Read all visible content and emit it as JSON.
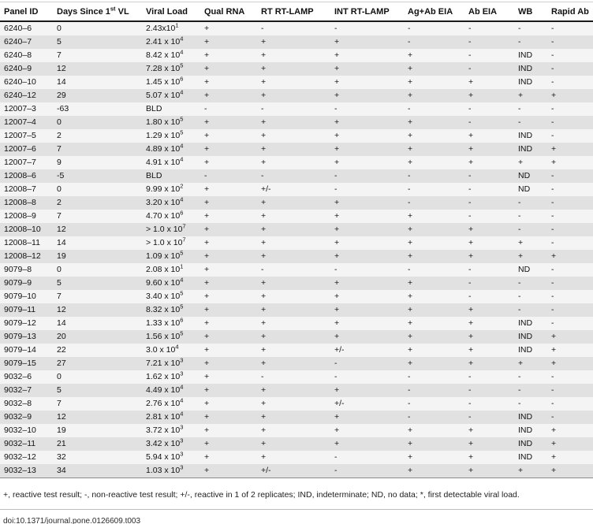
{
  "table": {
    "columns": [
      "Panel ID",
      "Days Since 1^{st} VL",
      "Viral Load",
      "Qual RNA",
      "RT RT-LAMP",
      "INT RT-LAMP",
      "Ag+Ab EIA",
      "Ab EIA",
      "WB",
      "Rapid Ab"
    ],
    "rows": [
      [
        "6240–6",
        "0",
        "2.43x10^{1}",
        "+",
        "-",
        "-",
        "-",
        "-",
        "-",
        "-"
      ],
      [
        "6240–7",
        "5",
        "2.41 x 10^{4}",
        "+",
        "+",
        "+",
        "-",
        "-",
        "-",
        "-"
      ],
      [
        "6240–8",
        "7",
        "8.42 x 10^{4}",
        "+",
        "+",
        "+",
        "+",
        "-",
        "IND",
        "-"
      ],
      [
        "6240–9",
        "12",
        "7.28 x 10^{5}",
        "+",
        "+",
        "+",
        "+",
        "-",
        "IND",
        "-"
      ],
      [
        "6240–10",
        "14",
        "1.45 x 10^{6}",
        "+",
        "+",
        "+",
        "+",
        "+",
        "IND",
        "-"
      ],
      [
        "6240–12",
        "29",
        "5.07 x 10^{4}",
        "+",
        "+",
        "+",
        "+",
        "+",
        "+",
        "+"
      ],
      [
        "12007–3",
        "-63",
        "BLD",
        "-",
        "-",
        "-",
        "-",
        "-",
        "-",
        "-"
      ],
      [
        "12007–4",
        "0",
        "1.80 x 10^{5}",
        "+",
        "+",
        "+",
        "+",
        "-",
        "-",
        "-"
      ],
      [
        "12007–5",
        "2",
        "1.29 x 10^{5}",
        "+",
        "+",
        "+",
        "+",
        "+",
        "IND",
        "-"
      ],
      [
        "12007–6",
        "7",
        "4.89 x 10^{4}",
        "+",
        "+",
        "+",
        "+",
        "+",
        "IND",
        "+"
      ],
      [
        "12007–7",
        "9",
        "4.91 x 10^{4}",
        "+",
        "+",
        "+",
        "+",
        "+",
        "+",
        "+"
      ],
      [
        "12008–6",
        "-5",
        "BLD",
        "-",
        "-",
        "-",
        "-",
        "-",
        "ND",
        "-"
      ],
      [
        "12008–7",
        "0",
        "9.99 x 10^{2}",
        "+",
        "+/-",
        "-",
        "-",
        "-",
        "ND",
        "-"
      ],
      [
        "12008–8",
        "2",
        "3.20 x 10^{4}",
        "+",
        "+",
        "+",
        "-",
        "-",
        "-",
        "-"
      ],
      [
        "12008–9",
        "7",
        "4.70 x 10^{6}",
        "+",
        "+",
        "+",
        "+",
        "-",
        "-",
        "-"
      ],
      [
        "12008–10",
        "12",
        "> 1.0 x 10^{7}",
        "+",
        "+",
        "+",
        "+",
        "+",
        "-",
        "-"
      ],
      [
        "12008–11",
        "14",
        "> 1.0 x 10^{7}",
        "+",
        "+",
        "+",
        "+",
        "+",
        "+",
        "-"
      ],
      [
        "12008–12",
        "19",
        "1.09 x 10^{5}",
        "+",
        "+",
        "+",
        "+",
        "+",
        "+",
        "+"
      ],
      [
        "9079–8",
        "0",
        "2.08 x 10^{1}",
        "+",
        "-",
        "-",
        "-",
        "-",
        "ND",
        "-"
      ],
      [
        "9079–9",
        "5",
        "9.60 x 10^{4}",
        "+",
        "+",
        "+",
        "+",
        "-",
        "-",
        "-"
      ],
      [
        "9079–10",
        "7",
        "3.40 x 10^{5}",
        "+",
        "+",
        "+",
        "+",
        "-",
        "-",
        "-"
      ],
      [
        "9079–11",
        "12",
        "8.32 x 10^{5}",
        "+",
        "+",
        "+",
        "+",
        "+",
        "-",
        "-"
      ],
      [
        "9079–12",
        "14",
        "1.33 x 10^{6}",
        "+",
        "+",
        "+",
        "+",
        "+",
        "IND",
        "-"
      ],
      [
        "9079–13",
        "20",
        "1.56 x 10^{5}",
        "+",
        "+",
        "+",
        "+",
        "+",
        "IND",
        "+"
      ],
      [
        "9079–14",
        "22",
        "3.0 x 10^{4}",
        "+",
        "+",
        "+/-",
        "+",
        "+",
        "IND",
        "+"
      ],
      [
        "9079–15",
        "27",
        "7.21 x 10^{3}",
        "+",
        "+",
        "-",
        "+",
        "+",
        "+",
        "+"
      ],
      [
        "9032–6",
        "0",
        "1.62 x 10^{3}",
        "+",
        "-",
        "-",
        "-",
        "-",
        "-",
        "-"
      ],
      [
        "9032–7",
        "5",
        "4.49 x 10^{4}",
        "+",
        "+",
        "+",
        "-",
        "-",
        "-",
        "-"
      ],
      [
        "9032–8",
        "7",
        "2.76 x 10^{4}",
        "+",
        "+",
        "+/-",
        "-",
        "-",
        "-",
        "-"
      ],
      [
        "9032–9",
        "12",
        "2.81 x 10^{4}",
        "+",
        "+",
        "+",
        "-",
        "-",
        "IND",
        "-"
      ],
      [
        "9032–10",
        "19",
        "3.72 x 10^{3}",
        "+",
        "+",
        "+",
        "+",
        "+",
        "IND",
        "+"
      ],
      [
        "9032–11",
        "21",
        "3.42 x 10^{3}",
        "+",
        "+",
        "+",
        "+",
        "+",
        "IND",
        "+"
      ],
      [
        "9032–12",
        "32",
        "5.94 x 10^{3}",
        "+",
        "+",
        "-",
        "+",
        "+",
        "IND",
        "+"
      ],
      [
        "9032–13",
        "34",
        "1.03 x 10^{3}",
        "+",
        "+/-",
        "-",
        "+",
        "+",
        "+",
        "+"
      ]
    ]
  },
  "footnote": "+, reactive test result; -, non-reactive test result; +/-, reactive in 1 of 2 replicates; IND, indeterminate; ND, no data; *, first detectable viral load.",
  "doi": "doi:10.1371/journal.pone.0126609.t003",
  "colors": {
    "row_light": "#f4f4f4",
    "row_dark": "#e1e1e1",
    "header_rule": "#1a1a1a",
    "top_rule": "#cfcfcf",
    "bottom_rule": "#8a8a8a"
  }
}
